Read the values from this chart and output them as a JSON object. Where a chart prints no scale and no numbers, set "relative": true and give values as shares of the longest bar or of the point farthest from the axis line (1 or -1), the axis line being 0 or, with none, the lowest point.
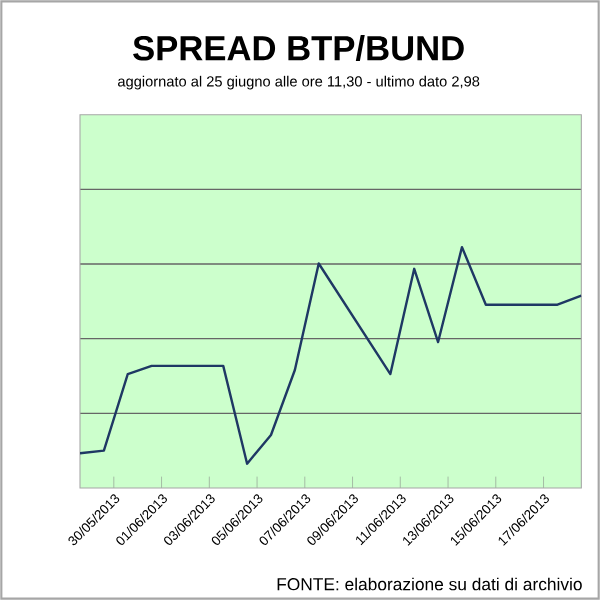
{
  "chart_data": {
    "type": "line",
    "title": "SPREAD  BTP/BUND",
    "subtitle": "aggiornato al 25 giugno alle ore 11,30 - ultimo dato 2,98",
    "annotations": [
      "FONTE: elaborazione su dati di archivio"
    ],
    "relative": true,
    "grid": "y",
    "color": "#1f3864",
    "x": [
      "2013-05-28T14:00",
      "2013-05-29T14:00",
      "2013-05-30T14:00",
      "2013-05-31T14:00",
      "2013-06-03T14:00",
      "2013-06-04T14:00",
      "2013-06-05T14:00",
      "2013-06-06T14:00",
      "2013-06-07T14:00",
      "2013-06-10T14:00",
      "2013-06-11T14:00",
      "2013-06-12T14:00",
      "2013-06-13T14:00",
      "2013-06-14T14:00",
      "2013-06-17T14:00",
      "2013-06-18T14:00"
    ],
    "values": [
      0.144,
      0.155,
      0.473,
      0.507,
      0.507,
      0.101,
      0.22,
      0.49,
      0.932,
      0.473,
      0.91,
      0.606,
      1,
      0.761,
      0.761,
      0.799
    ],
    "xlim": [
      "2013-05-28T14:00",
      "2013-06-18T14:00"
    ],
    "xticks": [
      {
        "value": "2013-05-30",
        "label": "30/05/2013"
      },
      {
        "value": "2013-06-01",
        "label": "01/06/2013"
      },
      {
        "value": "2013-06-03",
        "label": "03/06/2013"
      },
      {
        "value": "2013-06-05",
        "label": "05/06/2013"
      },
      {
        "value": "2013-06-07",
        "label": "07/06/2013"
      },
      {
        "value": "2013-06-09",
        "label": "09/06/2013"
      },
      {
        "value": "2013-06-11",
        "label": "11/06/2013"
      },
      {
        "value": "2013-06-13",
        "label": "13/06/2013"
      },
      {
        "value": "2013-06-15",
        "label": "15/06/2013"
      },
      {
        "value": "2013-06-17",
        "label": "17/06/2013"
      }
    ]
  }
}
